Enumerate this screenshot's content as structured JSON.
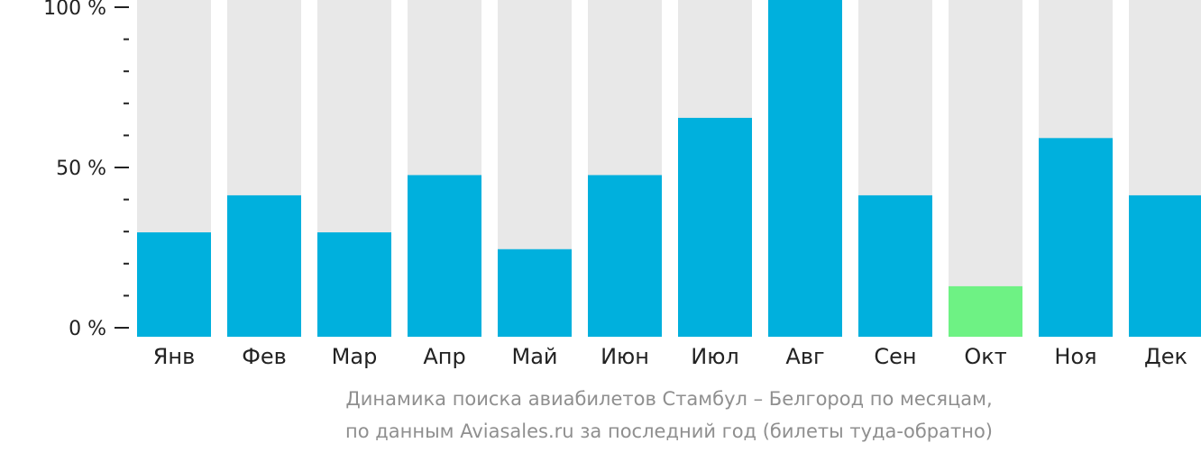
{
  "chart_data": {
    "type": "bar",
    "categories": [
      "Янв",
      "Фев",
      "Мар",
      "Апр",
      "Май",
      "Июн",
      "Июл",
      "Авг",
      "Сен",
      "Окт",
      "Ноя",
      "Дек"
    ],
    "values": [
      31,
      42,
      31,
      48,
      26,
      48,
      65,
      100,
      42,
      15,
      59,
      42
    ],
    "ylim": [
      0,
      100
    ],
    "yticks": [
      {
        "value": 100,
        "label": "100 %"
      },
      {
        "value": 50,
        "label": "50 %"
      },
      {
        "value": 0,
        "label": "0 %"
      }
    ],
    "minor_ticks": [
      10,
      20,
      30,
      40,
      60,
      70,
      80,
      90
    ],
    "highlight_index": 9,
    "colors": {
      "bar": "#00b0dd",
      "highlight": "#6ef284",
      "track": "#e8e8e8",
      "axis": "#222222"
    },
    "caption_line1": "Динамика поиска авиабилетов Стамбул – Белгород по месяцам,",
    "caption_line2": "по данным Aviasales.ru за последний год (билеты туда-обратно)"
  }
}
